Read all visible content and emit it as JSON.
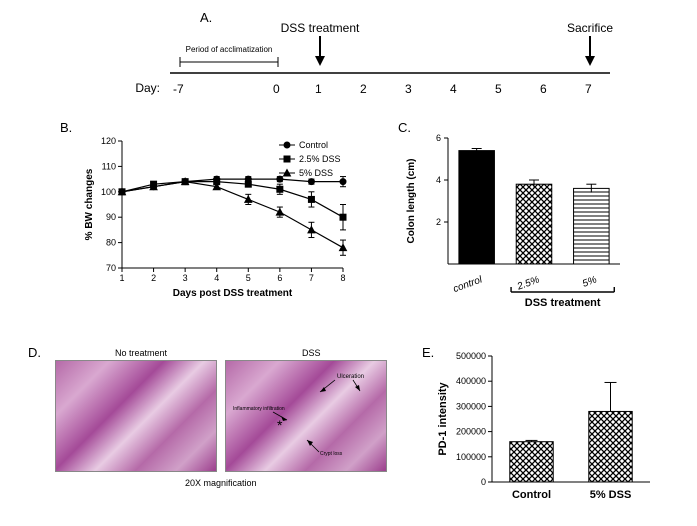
{
  "colors": {
    "bg": "#ffffff",
    "ink": "#000000",
    "histo_a": "#b56aa8",
    "histo_b": "#d9a8d0"
  },
  "panels": {
    "A": {
      "label": "A."
    },
    "B": {
      "label": "B."
    },
    "C": {
      "label": "C."
    },
    "D": {
      "label": "D."
    },
    "E": {
      "label": "E."
    }
  },
  "panelA": {
    "top_label_left": "DSS treatment",
    "top_label_right": "Sacrifice",
    "bracket_label": "Period of acclimatization",
    "day_label": "Day:",
    "days": [
      "-7",
      "0",
      "1",
      "2",
      "3",
      "4",
      "5",
      "6",
      "7"
    ]
  },
  "panelB": {
    "type": "line",
    "x_label": "Days post DSS treatment",
    "y_label": "% BW changes",
    "ylim": [
      70,
      120
    ],
    "ytick_step": 10,
    "x_values": [
      1,
      2,
      3,
      4,
      5,
      6,
      7,
      8
    ],
    "legend": [
      {
        "name": "Control",
        "marker": "circle"
      },
      {
        "name": "2.5% DSS",
        "marker": "square"
      },
      {
        "name": "5% DSS",
        "marker": "triangle"
      }
    ],
    "series": {
      "control": [
        100,
        102,
        104,
        105,
        105,
        105,
        104,
        104
      ],
      "control_err": [
        0,
        1,
        1,
        1,
        1,
        1,
        1,
        2
      ],
      "dss25": [
        100,
        103,
        104,
        104,
        103,
        101,
        97,
        90
      ],
      "dss25_err": [
        0,
        1,
        1,
        1,
        1,
        2,
        3,
        5
      ],
      "dss5": [
        100,
        102,
        104,
        102,
        97,
        92,
        85,
        78
      ],
      "dss5_err": [
        0,
        1,
        1,
        1,
        2,
        2,
        3,
        3
      ]
    },
    "line_color": "#000000",
    "axis_fontsize": 9,
    "label_fontsize": 10
  },
  "panelC": {
    "type": "bar",
    "y_label": "Colon length (cm)",
    "ylim": [
      0,
      6
    ],
    "yticks": [
      2,
      4,
      6
    ],
    "categories": [
      "control",
      "2.5%",
      "5%"
    ],
    "values": [
      5.4,
      3.8,
      3.6
    ],
    "errors": [
      0.1,
      0.2,
      0.2
    ],
    "patterns": [
      "solid",
      "diag",
      "horiz"
    ],
    "bar_color": "#000000",
    "bracket_label": "DSS treatment",
    "axis_fontsize": 9,
    "label_fontsize": 10
  },
  "panelD": {
    "left_title": "No treatment",
    "right_title": "DSS",
    "caption": "20X magnification",
    "arrow_label_1": "Ulceration",
    "arrow_label_2": "Inflammatory infiltration",
    "arrow_label_3": "Crypt loss"
  },
  "panelE": {
    "type": "bar",
    "y_label": "PD-1 intensity",
    "ylim": [
      0,
      500000
    ],
    "yticks": [
      0,
      100000,
      200000,
      300000,
      400000,
      500000
    ],
    "categories": [
      "Control",
      "5% DSS"
    ],
    "values": [
      160000,
      280000
    ],
    "errors": [
      5000,
      115000
    ],
    "patterns": [
      "diag",
      "diag"
    ],
    "axis_fontsize": 9,
    "label_fontsize": 11
  }
}
